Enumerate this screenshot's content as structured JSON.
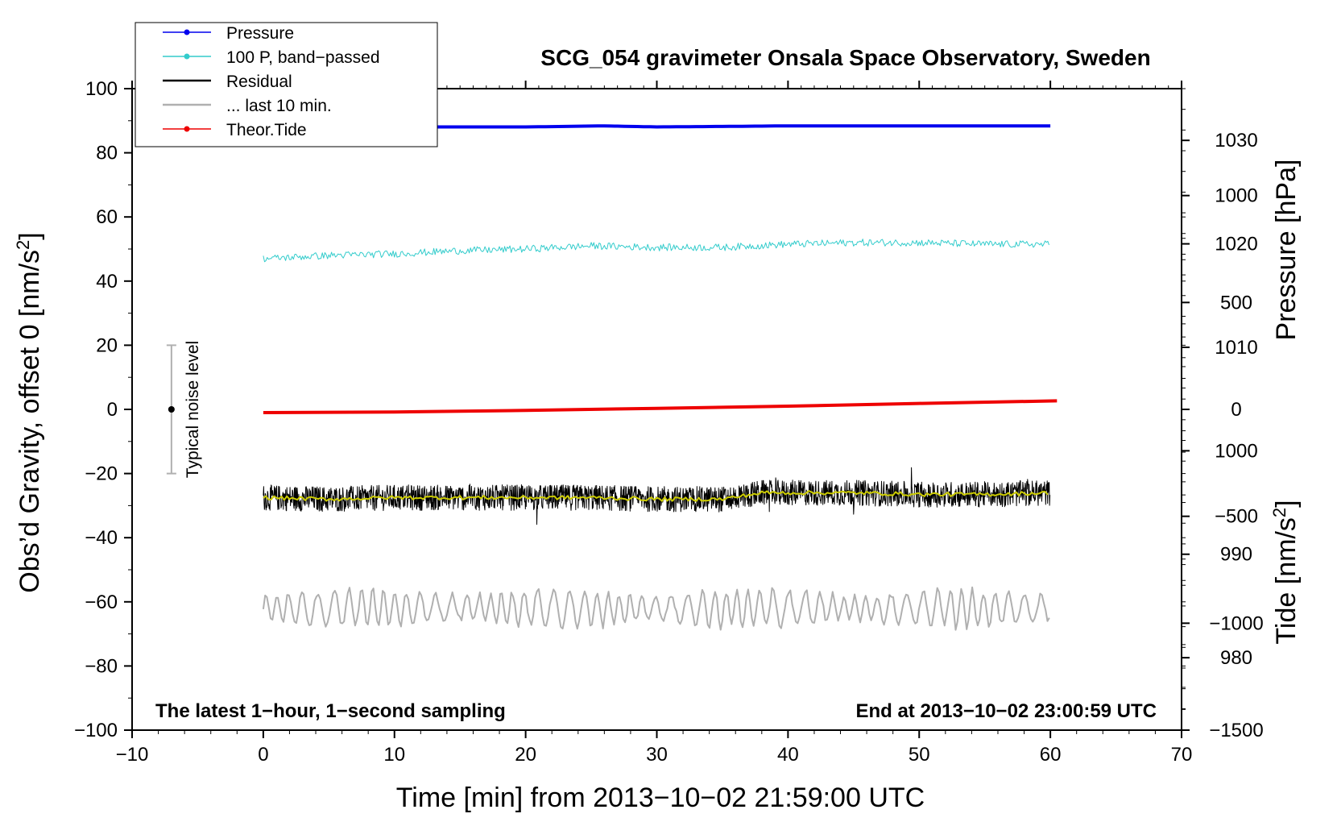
{
  "chart_data": {
    "type": "line",
    "title": "SCG_054 gravimeter Onsala Space Observatory, Sweden",
    "xlabel": "Time [min] from 2013−10−02 21:59:00 UTC",
    "ylabel": "Obs’d Gravity, offset 0 [nm/s",
    "ylabel_sup": "2",
    "ylabel_close": "]",
    "right_upper_label": "Pressure [hPa]",
    "right_lower_label": "Tide [nm/s",
    "right_lower_label_sup": "2",
    "right_lower_label_close": "]",
    "xlim": [
      -10,
      70
    ],
    "ylim": [
      -100,
      100
    ],
    "pressure_lim": [
      973,
      1035
    ],
    "tide_lim": [
      -1500,
      1500
    ],
    "grid": false,
    "legend_position": "top-left",
    "x_ticks": [
      "−10",
      "0",
      "10",
      "20",
      "30",
      "40",
      "50",
      "60",
      "70"
    ],
    "y_ticks": [
      "100",
      "80",
      "60",
      "40",
      "20",
      "0",
      "−20",
      "−40",
      "−60",
      "−80",
      "−100"
    ],
    "pressure_ticks": [
      "1030",
      "1020",
      "1010",
      "1000",
      "990",
      "980"
    ],
    "tide_ticks": [
      "1000",
      "500",
      "0",
      "−500",
      "−1000",
      "−1500"
    ],
    "left_note": "The latest 1−hour, 1−second sampling",
    "right_note": "End at 2013−10−02 23:00:59 UTC",
    "noise_bar": {
      "label": "Typical noise level",
      "x": -7,
      "center": 0,
      "low": -20,
      "high": 20
    },
    "colors": {
      "pressure": "#0000ee",
      "band_passed": "#33cccc",
      "residual": "#000000",
      "residual_smooth": "#cccc00",
      "last10": "#b0b0b0",
      "tide": "#ee0000"
    },
    "series": [
      {
        "name": "Pressure",
        "axis": "pressure",
        "x": [
          0,
          10,
          20,
          26,
          30,
          40,
          50,
          60
        ],
        "values": [
          1031.3,
          1031.3,
          1031.3,
          1031.4,
          1031.3,
          1031.4,
          1031.4,
          1031.4
        ]
      },
      {
        "name": "100 P, band−passed",
        "axis": "gravity",
        "x": [
          0,
          5,
          10,
          15,
          20,
          25,
          30,
          35,
          40,
          45,
          50,
          55,
          60
        ],
        "values": [
          47,
          48,
          48.5,
          49.5,
          50,
          51,
          50.5,
          50.5,
          51.5,
          52,
          52,
          51.5,
          51.5
        ]
      },
      {
        "name": "Residual",
        "axis": "gravity",
        "x": [
          0,
          5,
          10,
          15,
          20,
          25,
          30,
          35,
          38,
          40,
          45,
          50,
          55,
          60
        ],
        "values": [
          -27.5,
          -28,
          -27.5,
          -27.5,
          -27.5,
          -27.5,
          -28,
          -28,
          -26,
          -26,
          -26,
          -26.5,
          -26.5,
          -26
        ]
      },
      {
        "name": "... last 10 min.",
        "axis": "gravity",
        "x": [
          0,
          60
        ],
        "values": [
          -62,
          -62
        ]
      },
      {
        "name": "Theor.Tide",
        "axis": "tide",
        "x": [
          0,
          10,
          20,
          30,
          40,
          50,
          60.5
        ],
        "values": [
          -15,
          -12,
          -5,
          5,
          15,
          28,
          40
        ]
      }
    ]
  }
}
